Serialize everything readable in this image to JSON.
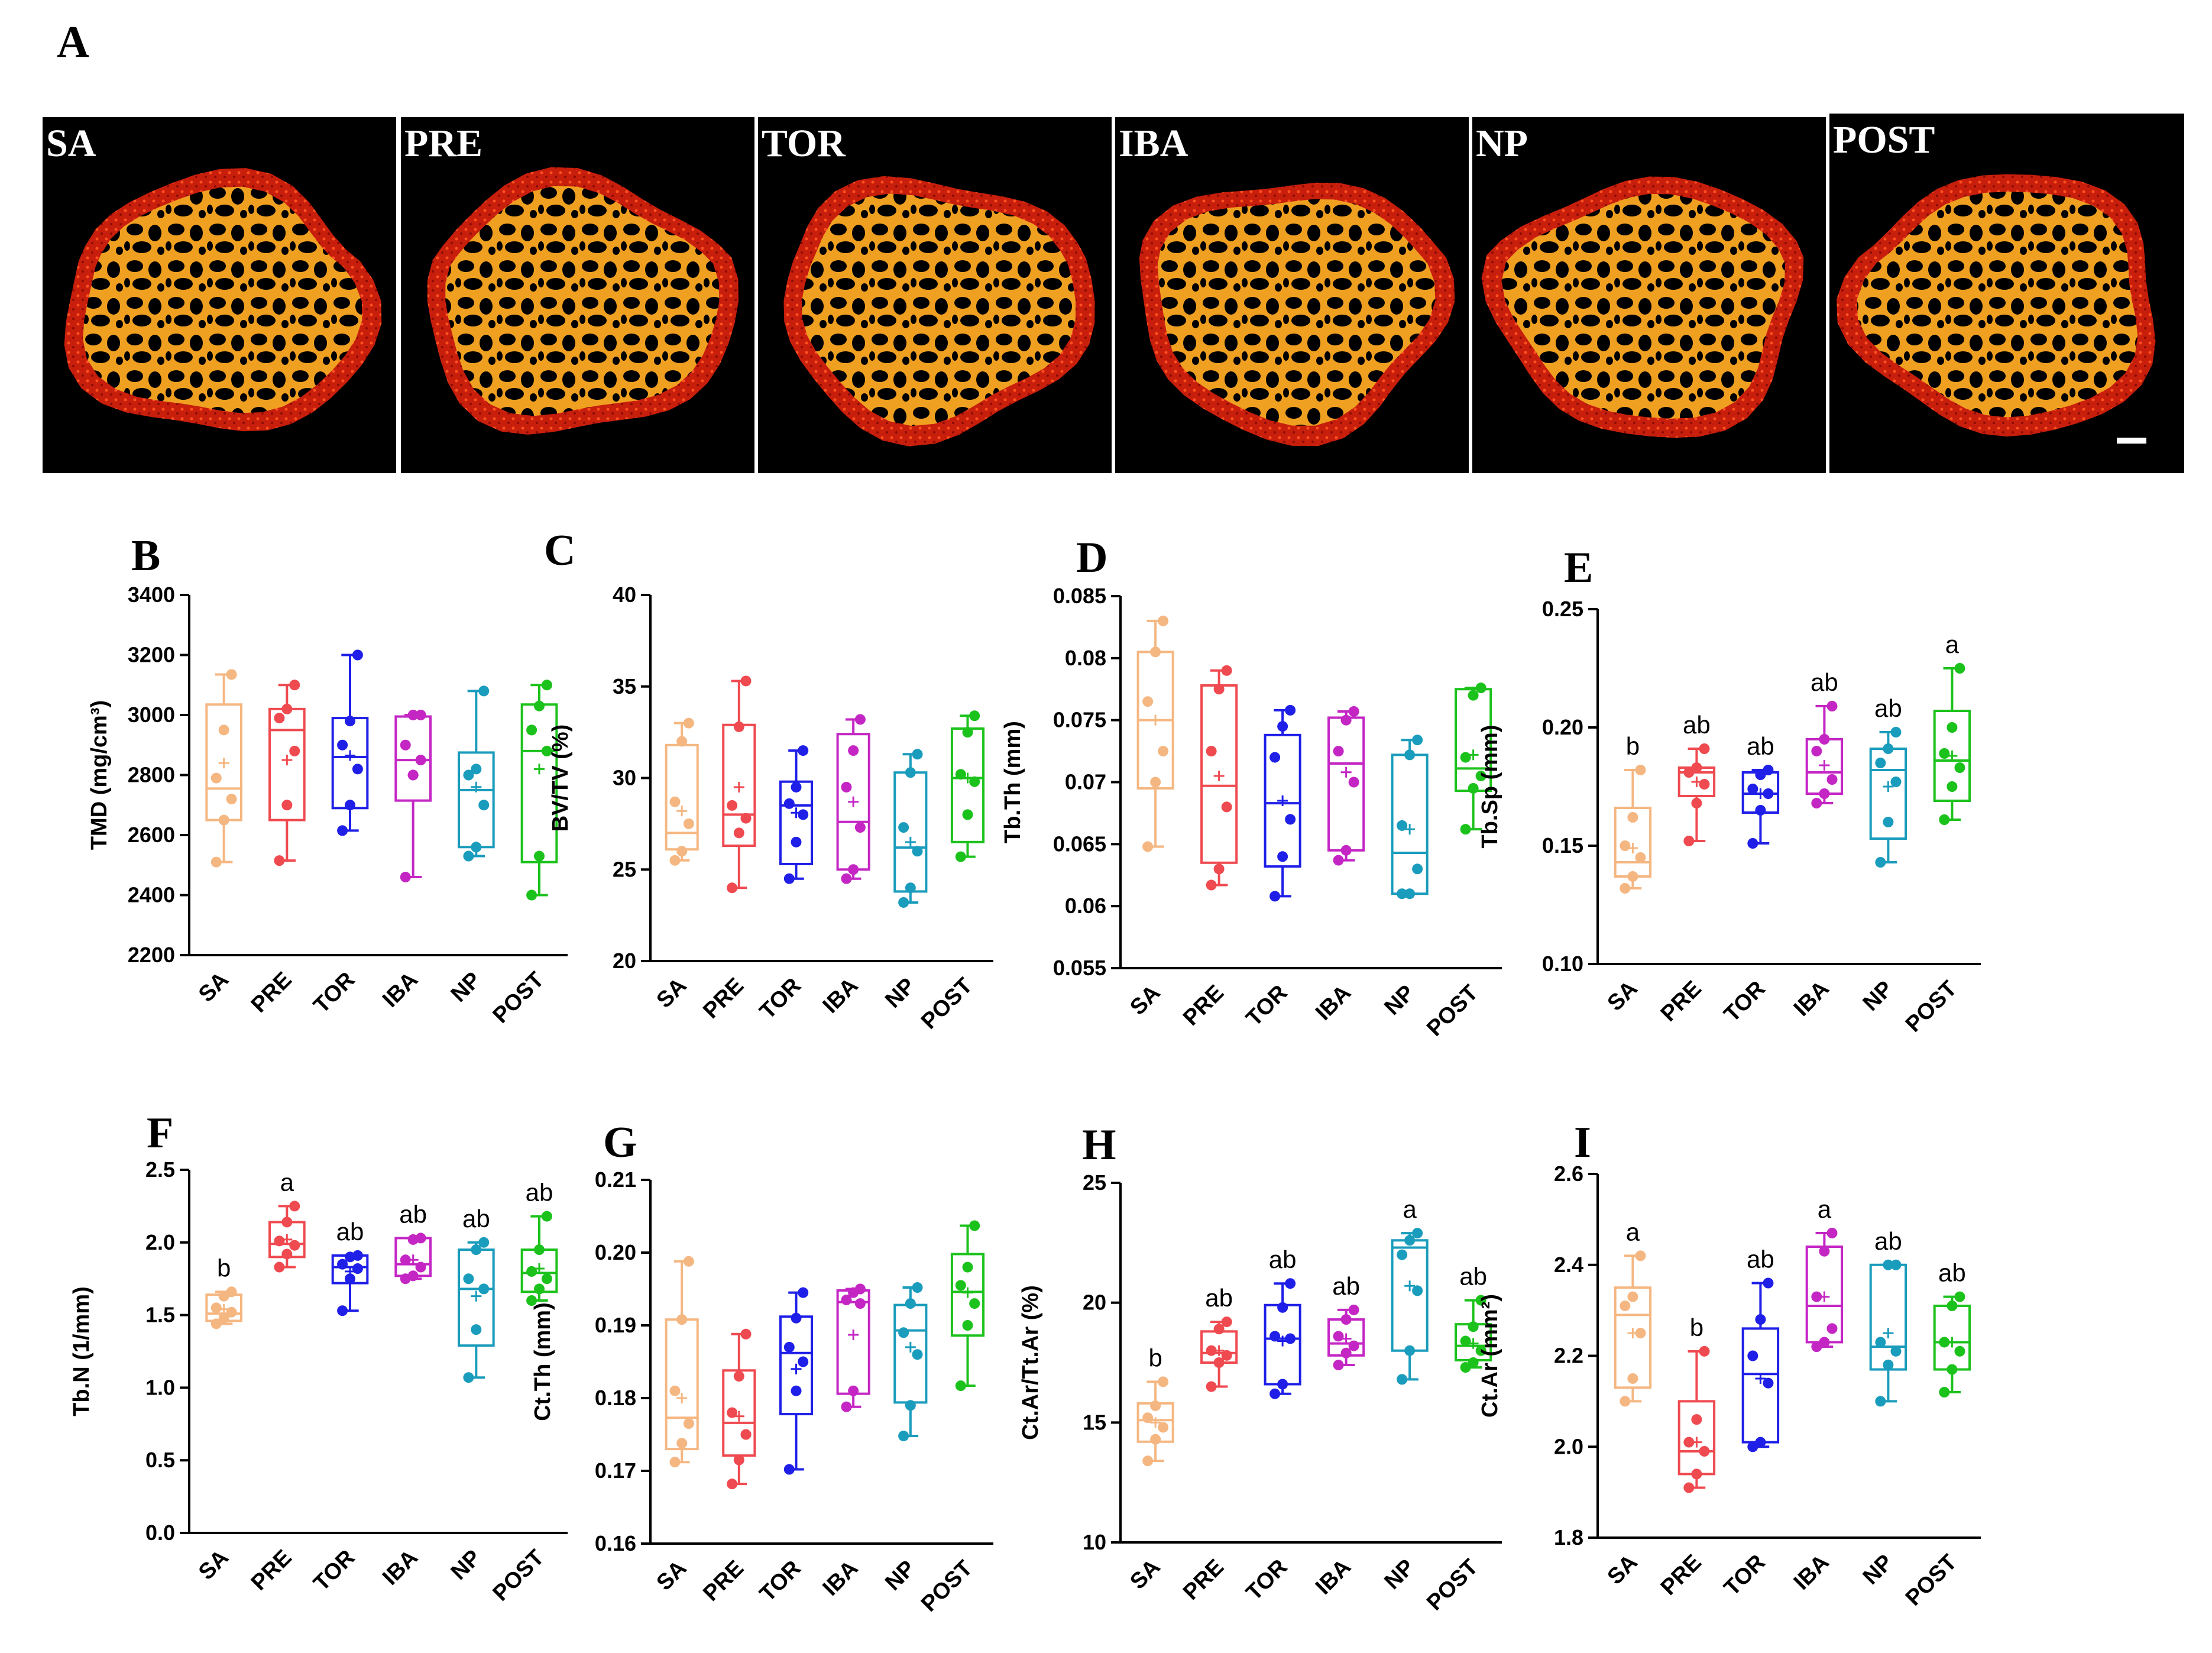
{
  "figure_label": "A",
  "microct": {
    "groups": [
      "SA",
      "PRE",
      "TOR",
      "IBA",
      "NP",
      "POST"
    ],
    "colors": {
      "cortex": "#d42a10",
      "trabecular": "#f0a020",
      "background": "#000000"
    }
  },
  "group_colors": [
    "#f5b782",
    "#ef4a50",
    "#1f1fe8",
    "#c426c4",
    "#1a9cbc",
    "#1cc21c"
  ],
  "chart_data": [
    {
      "id": "B",
      "type": "box",
      "ylabel": "TMD (mg/cm³)",
      "ylim": [
        2200,
        3400
      ],
      "yticks": [
        2200,
        2400,
        2600,
        2800,
        3000,
        3200,
        3400
      ],
      "categories": [
        "SA",
        "PRE",
        "TOR",
        "IBA",
        "NP",
        "POST"
      ],
      "boxes": [
        {
          "min": 2510,
          "q1": 2650,
          "median": 2755,
          "q3": 3035,
          "max": 3135,
          "mean": 2840
        },
        {
          "min": 2515,
          "q1": 2650,
          "median": 2950,
          "q3": 3020,
          "max": 3100,
          "mean": 2850
        },
        {
          "min": 2615,
          "q1": 2690,
          "median": 2860,
          "q3": 2990,
          "max": 3200,
          "mean": 2865
        },
        {
          "min": 2460,
          "q1": 2715,
          "median": 2850,
          "q3": 2995,
          "max": 3000,
          "mean": 2800
        },
        {
          "min": 2530,
          "q1": 2560,
          "median": 2750,
          "q3": 2875,
          "max": 3080,
          "mean": 2760
        },
        {
          "min": 2400,
          "q1": 2510,
          "median": 2880,
          "q3": 3035,
          "max": 3100,
          "mean": 2820
        }
      ],
      "points": [
        [
          2510,
          2650,
          2720,
          2790,
          2950,
          3135
        ],
        [
          2515,
          2700,
          2880,
          2990,
          3020,
          3100
        ],
        [
          2615,
          2700,
          2820,
          2900,
          2980,
          3200
        ],
        [
          2460,
          2800,
          2850,
          2900,
          3000,
          3000
        ],
        [
          2530,
          2560,
          2700,
          2800,
          2820,
          3080
        ],
        [
          2400,
          2530,
          2880,
          2950,
          3030,
          3100
        ]
      ],
      "letters": []
    },
    {
      "id": "C",
      "type": "box",
      "ylabel": "BV/TV (%)",
      "ylim": [
        20,
        40
      ],
      "yticks": [
        20,
        25,
        30,
        35,
        40
      ],
      "categories": [
        "SA",
        "PRE",
        "TOR",
        "IBA",
        "NP",
        "POST"
      ],
      "boxes": [
        {
          "min": 25.5,
          "q1": 26.1,
          "median": 27.0,
          "q3": 31.8,
          "max": 33.0,
          "mean": 28.2
        },
        {
          "min": 24.0,
          "q1": 26.3,
          "median": 28.0,
          "q3": 32.9,
          "max": 35.3,
          "mean": 29.5
        },
        {
          "min": 24.5,
          "q1": 25.3,
          "median": 28.5,
          "q3": 29.8,
          "max": 31.5,
          "mean": 28.1
        },
        {
          "min": 24.5,
          "q1": 25.0,
          "median": 27.6,
          "q3": 32.4,
          "max": 33.2,
          "mean": 28.7
        },
        {
          "min": 23.2,
          "q1": 23.8,
          "median": 26.2,
          "q3": 30.3,
          "max": 31.3,
          "mean": 26.5
        },
        {
          "min": 25.7,
          "q1": 26.5,
          "median": 30.0,
          "q3": 32.7,
          "max": 33.4,
          "mean": 30.0
        }
      ],
      "points": [
        [
          25.5,
          26.0,
          27.5,
          28.7,
          32.0,
          33.0
        ],
        [
          24.0,
          27.0,
          27.8,
          28.5,
          32.8,
          35.3
        ],
        [
          24.5,
          26.5,
          28.0,
          28.6,
          29.5,
          31.5
        ],
        [
          24.5,
          25.0,
          27.3,
          29.5,
          31.5,
          33.2
        ],
        [
          23.2,
          24.0,
          26.0,
          27.3,
          30.3,
          31.3
        ],
        [
          25.7,
          28.0,
          29.8,
          30.2,
          32.5,
          33.4
        ]
      ],
      "letters": []
    },
    {
      "id": "D",
      "type": "box",
      "ylabel": "Tb.Th (mm)",
      "ylim": [
        0.055,
        0.085
      ],
      "yticks": [
        0.055,
        0.06,
        0.065,
        0.07,
        0.075,
        0.08,
        0.085
      ],
      "categories": [
        "SA",
        "PRE",
        "TOR",
        "IBA",
        "NP",
        "POST"
      ],
      "boxes": [
        {
          "min": 0.0648,
          "q1": 0.0695,
          "median": 0.075,
          "q3": 0.0805,
          "max": 0.083,
          "mean": 0.075
        },
        {
          "min": 0.0617,
          "q1": 0.0635,
          "median": 0.0697,
          "q3": 0.0778,
          "max": 0.079,
          "mean": 0.0705
        },
        {
          "min": 0.0608,
          "q1": 0.0632,
          "median": 0.0683,
          "q3": 0.0738,
          "max": 0.0758,
          "mean": 0.0685
        },
        {
          "min": 0.0637,
          "q1": 0.0645,
          "median": 0.0715,
          "q3": 0.0752,
          "max": 0.0757,
          "mean": 0.0708
        },
        {
          "min": 0.061,
          "q1": 0.061,
          "median": 0.0643,
          "q3": 0.0722,
          "max": 0.0734,
          "mean": 0.0662
        },
        {
          "min": 0.0662,
          "q1": 0.0693,
          "median": 0.0711,
          "q3": 0.0775,
          "max": 0.0776,
          "mean": 0.0722
        }
      ],
      "points": [
        [
          0.0648,
          0.07,
          0.0725,
          0.0765,
          0.0805,
          0.083
        ],
        [
          0.0617,
          0.063,
          0.068,
          0.0725,
          0.0775,
          0.079
        ],
        [
          0.0608,
          0.064,
          0.067,
          0.072,
          0.0745,
          0.0758
        ],
        [
          0.0637,
          0.0645,
          0.07,
          0.0725,
          0.075,
          0.0757
        ],
        [
          0.061,
          0.061,
          0.063,
          0.0665,
          0.0722,
          0.0734
        ],
        [
          0.0662,
          0.0695,
          0.0705,
          0.072,
          0.077,
          0.0776
        ]
      ],
      "letters": []
    },
    {
      "id": "E",
      "type": "box",
      "ylabel": "Tb.Sp (mm)",
      "ylim": [
        0.1,
        0.25
      ],
      "yticks": [
        0.1,
        0.15,
        0.2,
        0.25
      ],
      "ytick_labels": [
        "0.10",
        "0.15",
        "0.20",
        "0.25"
      ],
      "categories": [
        "SA",
        "PRE",
        "TOR",
        "IBA",
        "NP",
        "POST"
      ],
      "boxes": [
        {
          "min": 0.132,
          "q1": 0.137,
          "median": 0.143,
          "q3": 0.166,
          "max": 0.182,
          "mean": 0.149
        },
        {
          "min": 0.152,
          "q1": 0.171,
          "median": 0.181,
          "q3": 0.183,
          "max": 0.191,
          "mean": 0.177
        },
        {
          "min": 0.151,
          "q1": 0.164,
          "median": 0.172,
          "q3": 0.181,
          "max": 0.182,
          "mean": 0.172
        },
        {
          "min": 0.168,
          "q1": 0.172,
          "median": 0.181,
          "q3": 0.195,
          "max": 0.209,
          "mean": 0.184
        },
        {
          "min": 0.143,
          "q1": 0.153,
          "median": 0.182,
          "q3": 0.191,
          "max": 0.198,
          "mean": 0.175
        },
        {
          "min": 0.161,
          "q1": 0.169,
          "median": 0.186,
          "q3": 0.207,
          "max": 0.225,
          "mean": 0.188
        }
      ],
      "points": [
        [
          0.132,
          0.137,
          0.145,
          0.15,
          0.162,
          0.182
        ],
        [
          0.152,
          0.168,
          0.176,
          0.181,
          0.183,
          0.191
        ],
        [
          0.151,
          0.165,
          0.172,
          0.174,
          0.18,
          0.182
        ],
        [
          0.168,
          0.172,
          0.178,
          0.19,
          0.195,
          0.209
        ],
        [
          0.143,
          0.16,
          0.177,
          0.185,
          0.191,
          0.198
        ],
        [
          0.161,
          0.175,
          0.183,
          0.189,
          0.2,
          0.225
        ]
      ],
      "letters": [
        "b",
        "ab",
        "ab",
        "ab",
        "ab",
        "a"
      ]
    },
    {
      "id": "F",
      "type": "box",
      "ylabel": "Tb.N (1/mm)",
      "ylim": [
        0,
        2.5
      ],
      "yticks": [
        0,
        0.5,
        1.0,
        1.5,
        2.0,
        2.5
      ],
      "ytick_labels": [
        "0.0",
        "0.5",
        "1.0",
        "1.5",
        "2.0",
        "2.5"
      ],
      "categories": [
        "SA",
        "PRE",
        "TOR",
        "IBA",
        "NP",
        "POST"
      ],
      "boxes": [
        {
          "min": 1.44,
          "q1": 1.46,
          "median": 1.51,
          "q3": 1.64,
          "max": 1.66,
          "mean": 1.54
        },
        {
          "min": 1.83,
          "q1": 1.9,
          "median": 1.99,
          "q3": 2.14,
          "max": 2.25,
          "mean": 2.02
        },
        {
          "min": 1.53,
          "q1": 1.72,
          "median": 1.83,
          "q3": 1.91,
          "max": 1.91,
          "mean": 1.8
        },
        {
          "min": 1.75,
          "q1": 1.77,
          "median": 1.85,
          "q3": 2.03,
          "max": 2.03,
          "mean": 1.88
        },
        {
          "min": 1.07,
          "q1": 1.29,
          "median": 1.68,
          "q3": 1.95,
          "max": 2.0,
          "mean": 1.63
        },
        {
          "min": 1.6,
          "q1": 1.66,
          "median": 1.79,
          "q3": 1.95,
          "max": 2.18,
          "mean": 1.82
        }
      ],
      "points": [
        [
          1.44,
          1.48,
          1.52,
          1.55,
          1.63,
          1.66
        ],
        [
          1.83,
          1.92,
          1.98,
          2.01,
          2.14,
          2.25
        ],
        [
          1.53,
          1.75,
          1.82,
          1.85,
          1.9,
          1.91
        ],
        [
          1.75,
          1.77,
          1.83,
          1.88,
          2.02,
          2.03
        ],
        [
          1.07,
          1.4,
          1.68,
          1.75,
          1.95,
          2.0
        ],
        [
          1.6,
          1.68,
          1.75,
          1.8,
          1.95,
          2.18
        ]
      ],
      "letters": [
        "b",
        "a",
        "ab",
        "ab",
        "ab",
        "ab"
      ]
    },
    {
      "id": "G",
      "type": "box",
      "ylabel": "Ct.Th (mm)",
      "ylim": [
        0.16,
        0.21
      ],
      "yticks": [
        0.16,
        0.17,
        0.18,
        0.19,
        0.2,
        0.21
      ],
      "ytick_labels": [
        "0.16",
        "0.17",
        "0.18",
        "0.19",
        "0.20",
        "0.21"
      ],
      "categories": [
        "SA",
        "PRE",
        "TOR",
        "IBA",
        "NP",
        "POST"
      ],
      "boxes": [
        {
          "min": 0.1712,
          "q1": 0.173,
          "median": 0.1773,
          "q3": 0.1908,
          "max": 0.1988,
          "mean": 0.18
        },
        {
          "min": 0.1682,
          "q1": 0.1721,
          "median": 0.1766,
          "q3": 0.1838,
          "max": 0.1888,
          "mean": 0.1775
        },
        {
          "min": 0.1702,
          "q1": 0.1778,
          "median": 0.1862,
          "q3": 0.1912,
          "max": 0.1945,
          "mean": 0.184
        },
        {
          "min": 0.1788,
          "q1": 0.1806,
          "median": 0.1932,
          "q3": 0.1948,
          "max": 0.195,
          "mean": 0.1887
        },
        {
          "min": 0.1748,
          "q1": 0.1794,
          "median": 0.1893,
          "q3": 0.1928,
          "max": 0.1952,
          "mean": 0.187
        },
        {
          "min": 0.1817,
          "q1": 0.1886,
          "median": 0.1946,
          "q3": 0.1998,
          "max": 0.2037,
          "mean": 0.1945
        }
      ],
      "points": [
        [
          0.1712,
          0.1738,
          0.1765,
          0.181,
          0.1908,
          0.1988
        ],
        [
          0.1682,
          0.1715,
          0.175,
          0.178,
          0.183,
          0.1888
        ],
        [
          0.1702,
          0.181,
          0.185,
          0.187,
          0.191,
          0.1945
        ],
        [
          0.1788,
          0.181,
          0.193,
          0.1935,
          0.1945,
          0.195
        ],
        [
          0.1748,
          0.179,
          0.186,
          0.189,
          0.193,
          0.1952
        ],
        [
          0.1817,
          0.19,
          0.193,
          0.1955,
          0.198,
          0.2037
        ]
      ],
      "letters": []
    },
    {
      "id": "H",
      "type": "box",
      "ylabel": "Ct.Ar/Tt.Ar (%)",
      "ylim": [
        10,
        25
      ],
      "yticks": [
        10,
        15,
        20,
        25
      ],
      "categories": [
        "SA",
        "PRE",
        "TOR",
        "IBA",
        "NP",
        "POST"
      ],
      "boxes": [
        {
          "min": 13.4,
          "q1": 14.2,
          "median": 15.1,
          "q3": 15.8,
          "max": 16.7,
          "mean": 15.0
        },
        {
          "min": 16.5,
          "q1": 17.5,
          "median": 17.9,
          "q3": 18.8,
          "max": 19.2,
          "mean": 18.0
        },
        {
          "min": 16.2,
          "q1": 16.6,
          "median": 18.5,
          "q3": 19.9,
          "max": 20.8,
          "mean": 18.4
        },
        {
          "min": 17.4,
          "q1": 17.8,
          "median": 18.3,
          "q3": 19.3,
          "max": 19.7,
          "mean": 18.5
        },
        {
          "min": 16.8,
          "q1": 18.0,
          "median": 22.3,
          "q3": 22.6,
          "max": 22.9,
          "mean": 20.7
        },
        {
          "min": 17.3,
          "q1": 17.6,
          "median": 18.2,
          "q3": 19.1,
          "max": 20.1,
          "mean": 18.3
        }
      ],
      "points": [
        [
          13.4,
          14.3,
          14.8,
          15.2,
          15.7,
          16.7
        ],
        [
          16.5,
          17.5,
          17.8,
          18.0,
          18.9,
          19.2
        ],
        [
          16.2,
          16.6,
          18.5,
          18.6,
          19.8,
          20.8
        ],
        [
          17.4,
          17.9,
          18.2,
          18.6,
          19.3,
          19.7
        ],
        [
          16.8,
          18.0,
          20.5,
          22.0,
          22.6,
          22.9
        ],
        [
          17.3,
          17.5,
          18.0,
          18.4,
          19.0,
          20.1
        ]
      ],
      "letters": [
        "b",
        "ab",
        "ab",
        "ab",
        "a",
        "ab"
      ]
    },
    {
      "id": "I",
      "type": "box",
      "ylabel": "Ct.Ar (mm²)",
      "ylim": [
        1.8,
        2.6
      ],
      "yticks": [
        1.8,
        2.0,
        2.2,
        2.4,
        2.6
      ],
      "ytick_labels": [
        "1.8",
        "2.0",
        "2.2",
        "2.4",
        "2.6"
      ],
      "categories": [
        "SA",
        "PRE",
        "TOR",
        "IBA",
        "NP",
        "POST"
      ],
      "boxes": [
        {
          "min": 2.1,
          "q1": 2.13,
          "median": 2.29,
          "q3": 2.35,
          "max": 2.42,
          "mean": 2.25
        },
        {
          "min": 1.91,
          "q1": 1.94,
          "median": 1.99,
          "q3": 2.1,
          "max": 2.21,
          "mean": 2.01
        },
        {
          "min": 2.0,
          "q1": 2.01,
          "median": 2.16,
          "q3": 2.26,
          "max": 2.36,
          "mean": 2.15
        },
        {
          "min": 2.22,
          "q1": 2.23,
          "median": 2.31,
          "q3": 2.44,
          "max": 2.47,
          "mean": 2.33
        },
        {
          "min": 2.1,
          "q1": 2.17,
          "median": 2.22,
          "q3": 2.4,
          "max": 2.4,
          "mean": 2.25
        },
        {
          "min": 2.12,
          "q1": 2.17,
          "median": 2.23,
          "q3": 2.31,
          "max": 2.33,
          "mean": 2.23
        }
      ],
      "points": [
        [
          2.1,
          2.15,
          2.25,
          2.31,
          2.33,
          2.42
        ],
        [
          1.91,
          1.94,
          1.99,
          2.01,
          2.06,
          2.21
        ],
        [
          2.0,
          2.01,
          2.14,
          2.2,
          2.28,
          2.36
        ],
        [
          2.22,
          2.23,
          2.26,
          2.33,
          2.43,
          2.47
        ],
        [
          2.1,
          2.18,
          2.21,
          2.23,
          2.4,
          2.4
        ],
        [
          2.12,
          2.17,
          2.21,
          2.23,
          2.31,
          2.33
        ]
      ],
      "letters": [
        "a",
        "b",
        "ab",
        "a",
        "ab",
        "ab"
      ]
    }
  ]
}
